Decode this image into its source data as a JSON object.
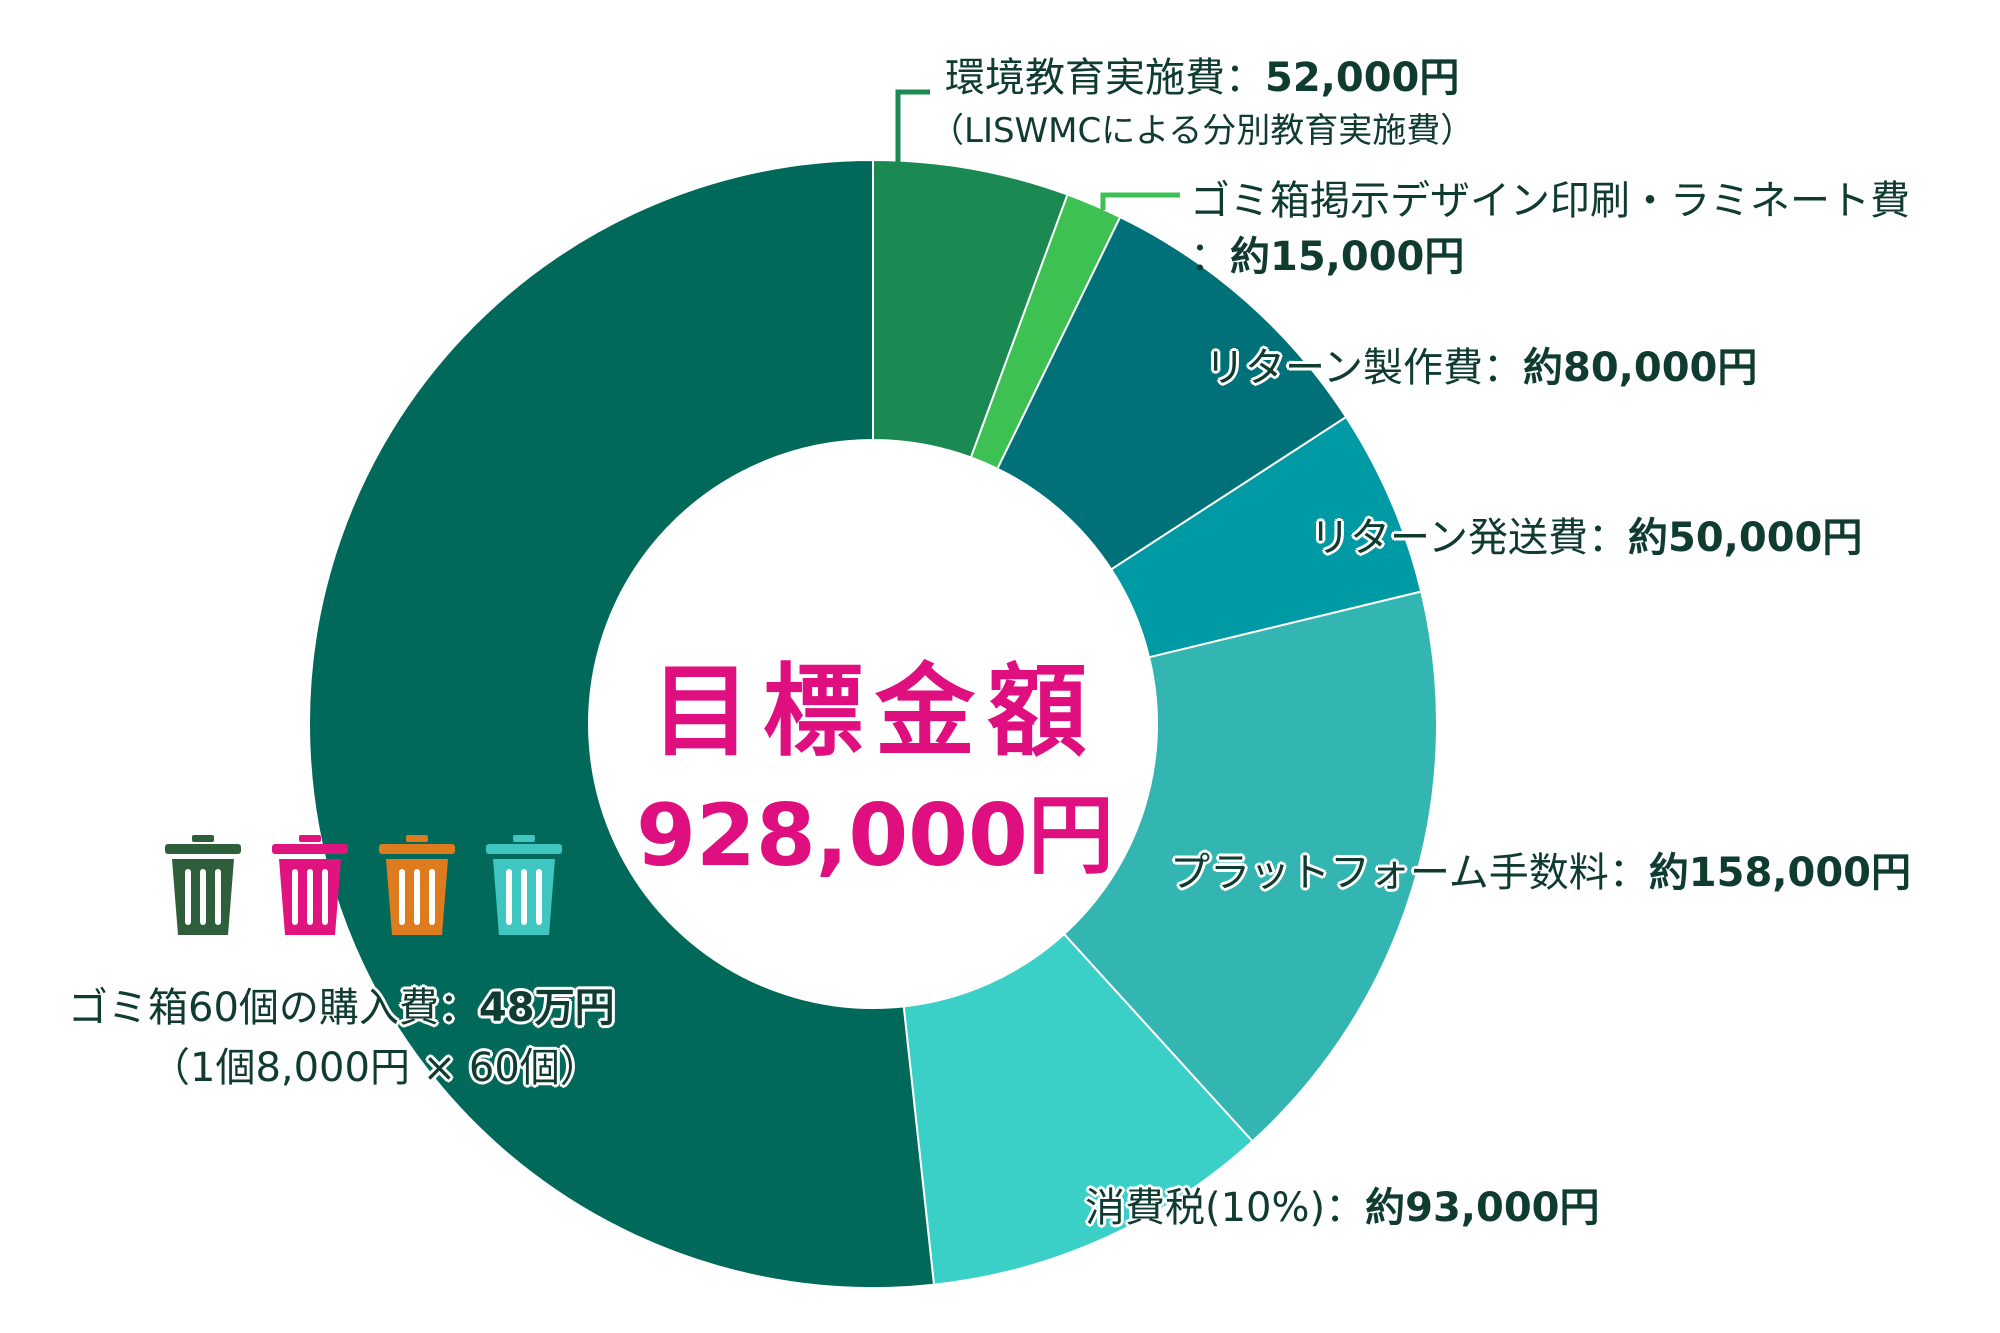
{
  "chart_data": {
    "type": "pie",
    "variant": "donut",
    "center_title": "目標金額",
    "center_total": "928,000円",
    "slices": [
      {
        "name": "環境教育実施費",
        "value": 52000,
        "value_label": "52,000円",
        "note": "（LISWMCによる分別教育実施費）",
        "color": "#1a8a52"
      },
      {
        "name": "ゴミ箱掲示デザイン印刷・ラミネート費",
        "value": 15000,
        "value_label": "約15,000円",
        "color": "#3cc152"
      },
      {
        "name": "リターン製作費",
        "value": 80000,
        "value_label": "約80,000円",
        "color": "#007179"
      },
      {
        "name": "リターン発送費",
        "value": 50000,
        "value_label": "約50,000円",
        "color": "#009aa5"
      },
      {
        "name": "プラットフォーム手数料",
        "value": 158000,
        "value_label": "約158,000円",
        "color": "#33b6b1"
      },
      {
        "name": "消費税(10%)",
        "value": 93000,
        "value_label": "約93,000円",
        "color": "#3ad0c8"
      },
      {
        "name": "ゴミ箱60個の購入費",
        "value": 480000,
        "value_label": "48万円",
        "note": "（1個8,000円 × 60個）",
        "color": "#006959"
      }
    ],
    "separator": "：",
    "bin_icons": [
      {
        "icon": "trash-bin-icon",
        "color": "#2e5e3a"
      },
      {
        "icon": "trash-bin-icon",
        "color": "#e0147f"
      },
      {
        "icon": "trash-bin-icon",
        "color": "#de7b1e"
      },
      {
        "icon": "trash-bin-icon",
        "color": "#3fc6c0"
      }
    ]
  }
}
